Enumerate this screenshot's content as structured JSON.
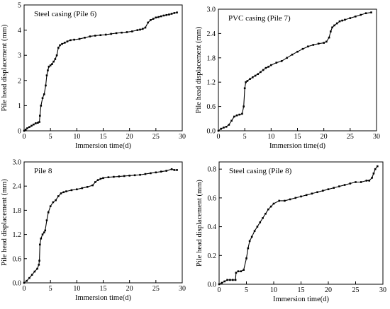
{
  "chart_data": [
    {
      "type": "scatter",
      "title": "Steel casing (Pile 6)",
      "xlabel": "Immersion time(d)",
      "ylabel": "Pile head displacement (mm)",
      "xlim": [
        0,
        30
      ],
      "ylim": [
        0,
        5
      ],
      "xticks": [
        "0",
        "5",
        "10",
        "15",
        "20",
        "25",
        "30"
      ],
      "yticks": [
        "0",
        "1",
        "2",
        "3",
        "4",
        "5"
      ],
      "x": [
        0,
        0.3,
        0.6,
        1.0,
        1.4,
        1.8,
        2.2,
        2.6,
        2.9,
        3.0,
        3.2,
        3.5,
        3.8,
        4.1,
        4.3,
        4.5,
        4.7,
        5.0,
        5.3,
        5.6,
        5.9,
        6.2,
        6.5,
        6.8,
        7.2,
        7.7,
        8.2,
        8.8,
        9.5,
        10.5,
        11.5,
        12.5,
        13.5,
        14.5,
        15.5,
        16.5,
        17.5,
        18.5,
        19.5,
        20.5,
        21.5,
        22.0,
        22.5,
        23.0,
        23.5,
        24.0,
        24.5,
        25.0,
        25.5,
        26.0,
        26.5,
        27.0,
        27.5,
        28.0,
        28.5,
        29.0
      ],
      "values": [
        0,
        0.05,
        0.1,
        0.15,
        0.2,
        0.25,
        0.3,
        0.32,
        0.35,
        0.6,
        1.0,
        1.3,
        1.45,
        1.8,
        2.2,
        2.4,
        2.55,
        2.6,
        2.65,
        2.75,
        2.85,
        3.0,
        3.3,
        3.4,
        3.45,
        3.5,
        3.55,
        3.6,
        3.62,
        3.65,
        3.7,
        3.75,
        3.78,
        3.8,
        3.82,
        3.85,
        3.88,
        3.9,
        3.92,
        3.95,
        4.0,
        4.02,
        4.05,
        4.1,
        4.3,
        4.4,
        4.45,
        4.5,
        4.52,
        4.55,
        4.58,
        4.6,
        4.62,
        4.65,
        4.68,
        4.7
      ]
    },
    {
      "type": "scatter",
      "title": "PVC casing (Pile 7)",
      "xlabel": "Immersion time(d)",
      "ylabel": "Pile head displacement (mm)",
      "xlim": [
        0,
        30
      ],
      "ylim": [
        0,
        3
      ],
      "xticks": [
        "0",
        "5",
        "10",
        "15",
        "20",
        "25",
        "30"
      ],
      "yticks": [
        "0.0",
        "0.6",
        "1.2",
        "1.8",
        "2.4",
        "3.0"
      ],
      "x": [
        0,
        0.5,
        1.0,
        1.5,
        2.0,
        2.5,
        3.0,
        3.5,
        4.0,
        4.5,
        4.8,
        5.0,
        5.2,
        5.5,
        6.0,
        6.5,
        7.0,
        7.5,
        8.0,
        8.5,
        9.0,
        9.5,
        10.0,
        11.0,
        12.0,
        13.0,
        14.0,
        15.0,
        16.0,
        17.0,
        18.0,
        19.0,
        20.0,
        20.5,
        21.0,
        21.3,
        21.6,
        22.0,
        22.5,
        23.0,
        23.5,
        24.0,
        25.0,
        26.0,
        27.0,
        28.0,
        29.0
      ],
      "values": [
        0,
        0.05,
        0.08,
        0.1,
        0.15,
        0.25,
        0.35,
        0.38,
        0.4,
        0.42,
        0.6,
        1.05,
        1.2,
        1.23,
        1.28,
        1.32,
        1.36,
        1.4,
        1.45,
        1.5,
        1.55,
        1.58,
        1.62,
        1.68,
        1.72,
        1.8,
        1.88,
        1.95,
        2.02,
        2.08,
        2.12,
        2.15,
        2.17,
        2.2,
        2.3,
        2.45,
        2.55,
        2.6,
        2.65,
        2.7,
        2.72,
        2.74,
        2.78,
        2.82,
        2.86,
        2.9,
        2.92
      ]
    },
    {
      "type": "scatter",
      "title": "Pile 8",
      "xlabel": "Immersion time(d)",
      "ylabel": "Pile head displacement (mm)",
      "xlim": [
        0,
        30
      ],
      "ylim": [
        0,
        3
      ],
      "xticks": [
        "0",
        "5",
        "10",
        "15",
        "20",
        "25",
        "30"
      ],
      "yticks": [
        "0.0",
        "0.6",
        "1.2",
        "1.8",
        "2.4",
        "3.0"
      ],
      "x": [
        0,
        0.5,
        1.0,
        1.5,
        2.0,
        2.5,
        2.8,
        2.9,
        3.0,
        3.2,
        3.5,
        3.8,
        4.0,
        4.3,
        4.6,
        5.0,
        5.5,
        6.0,
        6.5,
        7.0,
        7.5,
        8.0,
        9.0,
        10.0,
        11.0,
        12.0,
        13.0,
        13.5,
        14.0,
        14.5,
        15.0,
        16.0,
        17.0,
        18.0,
        19.0,
        20.0,
        21.0,
        22.0,
        23.0,
        24.0,
        25.0,
        26.0,
        27.0,
        28.0,
        28.5,
        29.0
      ],
      "values": [
        0,
        0.05,
        0.12,
        0.2,
        0.28,
        0.35,
        0.45,
        0.55,
        0.95,
        1.1,
        1.2,
        1.25,
        1.3,
        1.55,
        1.75,
        1.9,
        2.0,
        2.05,
        2.15,
        2.22,
        2.25,
        2.27,
        2.3,
        2.32,
        2.35,
        2.38,
        2.42,
        2.5,
        2.55,
        2.58,
        2.6,
        2.62,
        2.63,
        2.64,
        2.65,
        2.66,
        2.67,
        2.68,
        2.7,
        2.72,
        2.74,
        2.76,
        2.78,
        2.82,
        2.8,
        2.8
      ]
    },
    {
      "type": "scatter",
      "title": "Steel casing (Pile 8)",
      "xlabel": "Immersion time(d)",
      "ylabel": "Pile head displacement (mm)",
      "xlim": [
        0,
        30
      ],
      "ylim": [
        0,
        0.85
      ],
      "xticks": [
        "0",
        "5",
        "10",
        "15",
        "20",
        "25",
        "30"
      ],
      "yticks": [
        "0.0",
        "0.2",
        "0.4",
        "0.6",
        "0.8"
      ],
      "x": [
        0,
        0.5,
        1.0,
        1.5,
        2.0,
        2.5,
        3.0,
        3.1,
        3.5,
        4.0,
        4.5,
        5.0,
        5.3,
        5.6,
        6.0,
        6.5,
        7.0,
        7.5,
        8.0,
        8.5,
        9.0,
        9.5,
        10.0,
        11.0,
        12.0,
        13.0,
        14.0,
        15.0,
        16.0,
        17.0,
        18.0,
        19.0,
        20.0,
        21.0,
        22.0,
        23.0,
        24.0,
        25.0,
        26.0,
        27.0,
        27.5,
        28.0,
        28.3,
        28.6,
        29.0
      ],
      "values": [
        0,
        0.01,
        0.02,
        0.03,
        0.03,
        0.03,
        0.03,
        0.08,
        0.09,
        0.09,
        0.1,
        0.18,
        0.25,
        0.3,
        0.33,
        0.37,
        0.4,
        0.43,
        0.46,
        0.49,
        0.52,
        0.54,
        0.56,
        0.58,
        0.58,
        0.59,
        0.6,
        0.61,
        0.62,
        0.63,
        0.64,
        0.65,
        0.66,
        0.67,
        0.68,
        0.69,
        0.7,
        0.71,
        0.71,
        0.72,
        0.72,
        0.74,
        0.77,
        0.8,
        0.82
      ]
    }
  ]
}
